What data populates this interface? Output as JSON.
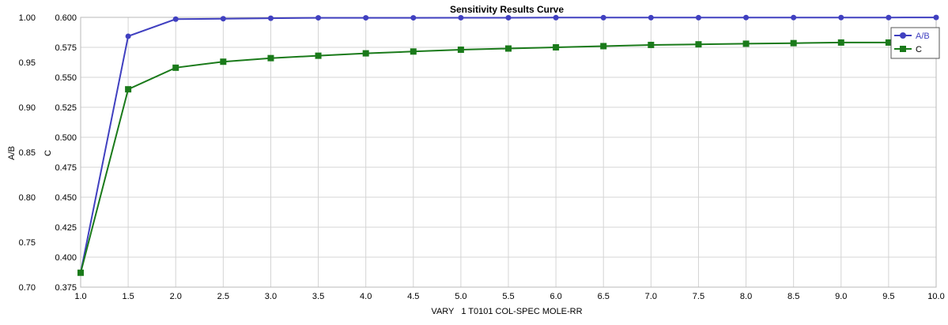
{
  "chart_data": {
    "type": "line",
    "title": "Sensitivity Results Curve",
    "xlabel": "VARY   1 T0101 COL-SPEC MOLE-RR",
    "x": [
      1.0,
      1.5,
      2.0,
      2.5,
      3.0,
      3.5,
      4.0,
      4.5,
      5.0,
      5.5,
      6.0,
      6.5,
      7.0,
      7.5,
      8.0,
      8.5,
      9.0,
      9.5,
      10.0
    ],
    "xlim": [
      1.0,
      10.0
    ],
    "xticks": [
      "1.0",
      "1.5",
      "2.0",
      "2.5",
      "3.0",
      "3.5",
      "4.0",
      "4.5",
      "5.0",
      "5.5",
      "6.0",
      "6.5",
      "7.0",
      "7.5",
      "8.0",
      "8.5",
      "9.0",
      "9.5",
      "10.0"
    ],
    "axes": [
      {
        "label": "A/B",
        "ylim": [
          0.7,
          1.0
        ],
        "ticks": [
          "0.70",
          "0.75",
          "0.80",
          "0.85",
          "0.90",
          "0.95",
          "1.00"
        ]
      },
      {
        "label": "C",
        "ylim": [
          0.375,
          0.6
        ],
        "ticks": [
          "0.375",
          "0.400",
          "0.425",
          "0.450",
          "0.475",
          "0.500",
          "0.525",
          "0.550",
          "0.575",
          "0.600"
        ]
      }
    ],
    "series": [
      {
        "name": "A/B",
        "axis": 0,
        "color": "#4040c0",
        "marker": "circle",
        "values": [
          0.716,
          0.979,
          0.998,
          0.9985,
          0.999,
          0.9995,
          0.9995,
          0.9995,
          0.9996,
          0.9996,
          0.9997,
          0.9997,
          0.9997,
          0.9997,
          0.9998,
          0.9998,
          0.9998,
          0.9998,
          0.9999
        ]
      },
      {
        "name": "C",
        "axis": 1,
        "color": "#1a7a1a",
        "marker": "square",
        "values": [
          0.387,
          0.54,
          0.558,
          0.563,
          0.566,
          0.568,
          0.57,
          0.5715,
          0.573,
          0.574,
          0.575,
          0.576,
          0.577,
          0.5775,
          0.578,
          0.5785,
          0.579,
          0.579,
          0.5795
        ]
      }
    ],
    "grid": true,
    "legend_position": "top-right"
  }
}
